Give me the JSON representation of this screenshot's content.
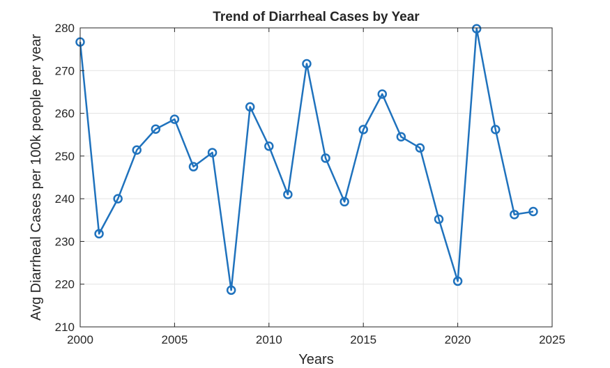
{
  "chart_data": {
    "type": "line",
    "title": "Trend of Diarrheal Cases by Year",
    "xlabel": "Years",
    "ylabel": "Avg Diarrheal Cases per 100k people per year",
    "xlim": [
      2000,
      2025
    ],
    "ylim": [
      210,
      280
    ],
    "xticks": [
      2000,
      2005,
      2010,
      2015,
      2020,
      2025
    ],
    "yticks": [
      210,
      220,
      230,
      240,
      250,
      260,
      270,
      280
    ],
    "grid": true,
    "legend": "none",
    "colors": {
      "series": "#1f72bd",
      "axis": "#262626",
      "grid": "#e3e3e3"
    },
    "series": [
      {
        "x": [
          2000,
          2001,
          2002,
          2003,
          2004,
          2005,
          2006,
          2007,
          2008,
          2009,
          2010,
          2011,
          2012,
          2013,
          2014,
          2015,
          2016,
          2017,
          2018,
          2019,
          2020,
          2021,
          2022,
          2023,
          2024
        ],
        "values": [
          276.7,
          231.8,
          240.0,
          251.4,
          256.3,
          258.6,
          247.5,
          250.8,
          218.6,
          261.5,
          252.3,
          241.0,
          271.6,
          249.5,
          239.3,
          256.2,
          264.5,
          254.5,
          251.9,
          235.2,
          220.7,
          279.8,
          256.2,
          236.3,
          237.0
        ],
        "marker": "circle"
      }
    ]
  }
}
